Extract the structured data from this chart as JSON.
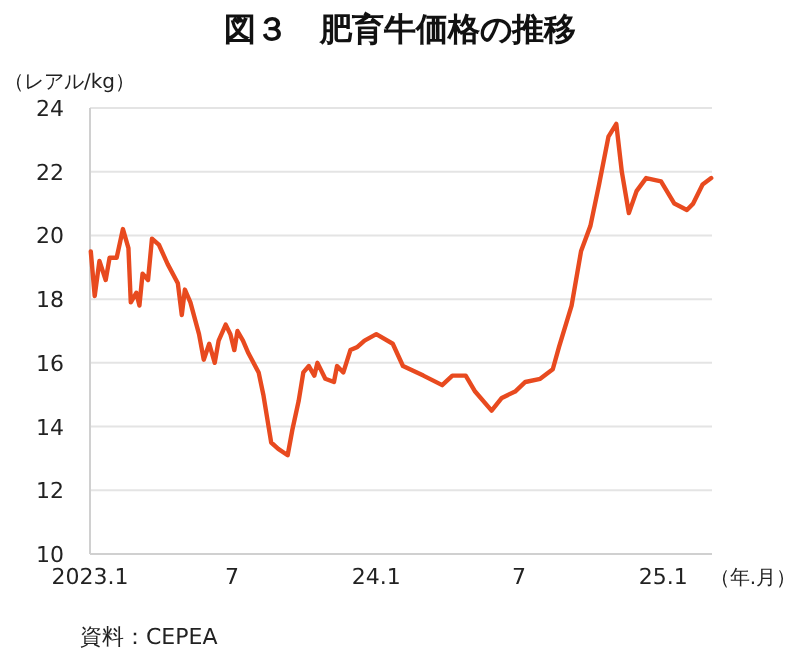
{
  "chart_data": {
    "type": "line",
    "title": "図３　肥育牛価格の推移",
    "ylabel": "（レアル/kg）",
    "xlabel": "（年.月）",
    "annotations": [
      "資料：CEPEA"
    ],
    "ylim": [
      10,
      24
    ],
    "yticks": [
      10,
      12,
      14,
      16,
      18,
      20,
      22,
      24
    ],
    "xlim": [
      "2023-01-01",
      "2025-03-04"
    ],
    "xticks": [
      {
        "value": "2023-01-01",
        "label": "2023.1"
      },
      {
        "value": "2023-07-01",
        "label": "7"
      },
      {
        "value": "2024-01-01",
        "label": "24.1"
      },
      {
        "value": "2024-07-01",
        "label": "7"
      },
      {
        "value": "2025-01-01",
        "label": "25.1"
      }
    ],
    "grid": "y",
    "marker": "none",
    "line_style": "solid",
    "series": [
      {
        "color": "#e84a1f",
        "x": [
          "2023-01-02",
          "2023-01-07",
          "2023-01-13",
          "2023-01-21",
          "2023-01-26",
          "2023-02-04",
          "2023-02-12",
          "2023-02-19",
          "2023-02-22",
          "2023-03-01",
          "2023-03-05",
          "2023-03-09",
          "2023-03-16",
          "2023-03-21",
          "2023-03-30",
          "2023-04-10",
          "2023-04-23",
          "2023-04-28",
          "2023-05-02",
          "2023-05-09",
          "2023-05-20",
          "2023-05-26",
          "2023-06-02",
          "2023-06-09",
          "2023-06-14",
          "2023-06-23",
          "2023-06-29",
          "2023-07-04",
          "2023-07-08",
          "2023-07-15",
          "2023-07-22",
          "2023-08-04",
          "2023-08-10",
          "2023-08-20",
          "2023-08-29",
          "2023-09-10",
          "2023-09-16",
          "2023-09-24",
          "2023-09-30",
          "2023-10-07",
          "2023-10-14",
          "2023-10-18",
          "2023-10-28",
          "2023-11-08",
          "2023-11-12",
          "2023-11-20",
          "2023-11-29",
          "2023-12-08",
          "2023-12-17",
          "2024-01-01",
          "2024-01-22",
          "2024-02-04",
          "2024-03-01",
          "2024-03-25",
          "2024-04-07",
          "2024-04-24",
          "2024-05-06",
          "2024-05-27",
          "2024-06-09",
          "2024-06-26",
          "2024-07-09",
          "2024-07-28",
          "2024-08-13",
          "2024-08-21",
          "2024-09-06",
          "2024-09-18",
          "2024-09-30",
          "2024-10-11",
          "2024-10-23",
          "2024-11-02",
          "2024-11-09",
          "2024-11-18",
          "2024-11-28",
          "2024-12-10",
          "2024-12-29",
          "2025-01-15",
          "2025-01-31",
          "2025-02-08",
          "2025-02-20",
          "2025-03-03"
        ],
        "values": [
          19.5,
          18.1,
          19.2,
          18.6,
          19.3,
          19.3,
          20.2,
          19.6,
          17.9,
          18.2,
          17.8,
          18.8,
          18.6,
          19.9,
          19.7,
          19.1,
          18.5,
          17.5,
          18.3,
          17.9,
          16.9,
          16.1,
          16.6,
          16.0,
          16.7,
          17.2,
          16.9,
          16.4,
          17.0,
          16.7,
          16.3,
          15.7,
          15.0,
          13.5,
          13.3,
          13.1,
          13.9,
          14.8,
          15.7,
          15.9,
          15.6,
          16.0,
          15.5,
          15.4,
          15.9,
          15.7,
          16.4,
          16.5,
          16.7,
          16.9,
          16.6,
          15.9,
          15.6,
          15.3,
          15.6,
          15.6,
          15.1,
          14.5,
          14.9,
          15.1,
          15.4,
          15.5,
          15.8,
          16.5,
          17.8,
          19.5,
          20.3,
          21.6,
          23.1,
          23.5,
          22.0,
          20.7,
          21.4,
          21.8,
          21.7,
          21.0,
          20.8,
          21.0,
          21.6,
          21.8
        ]
      }
    ]
  }
}
